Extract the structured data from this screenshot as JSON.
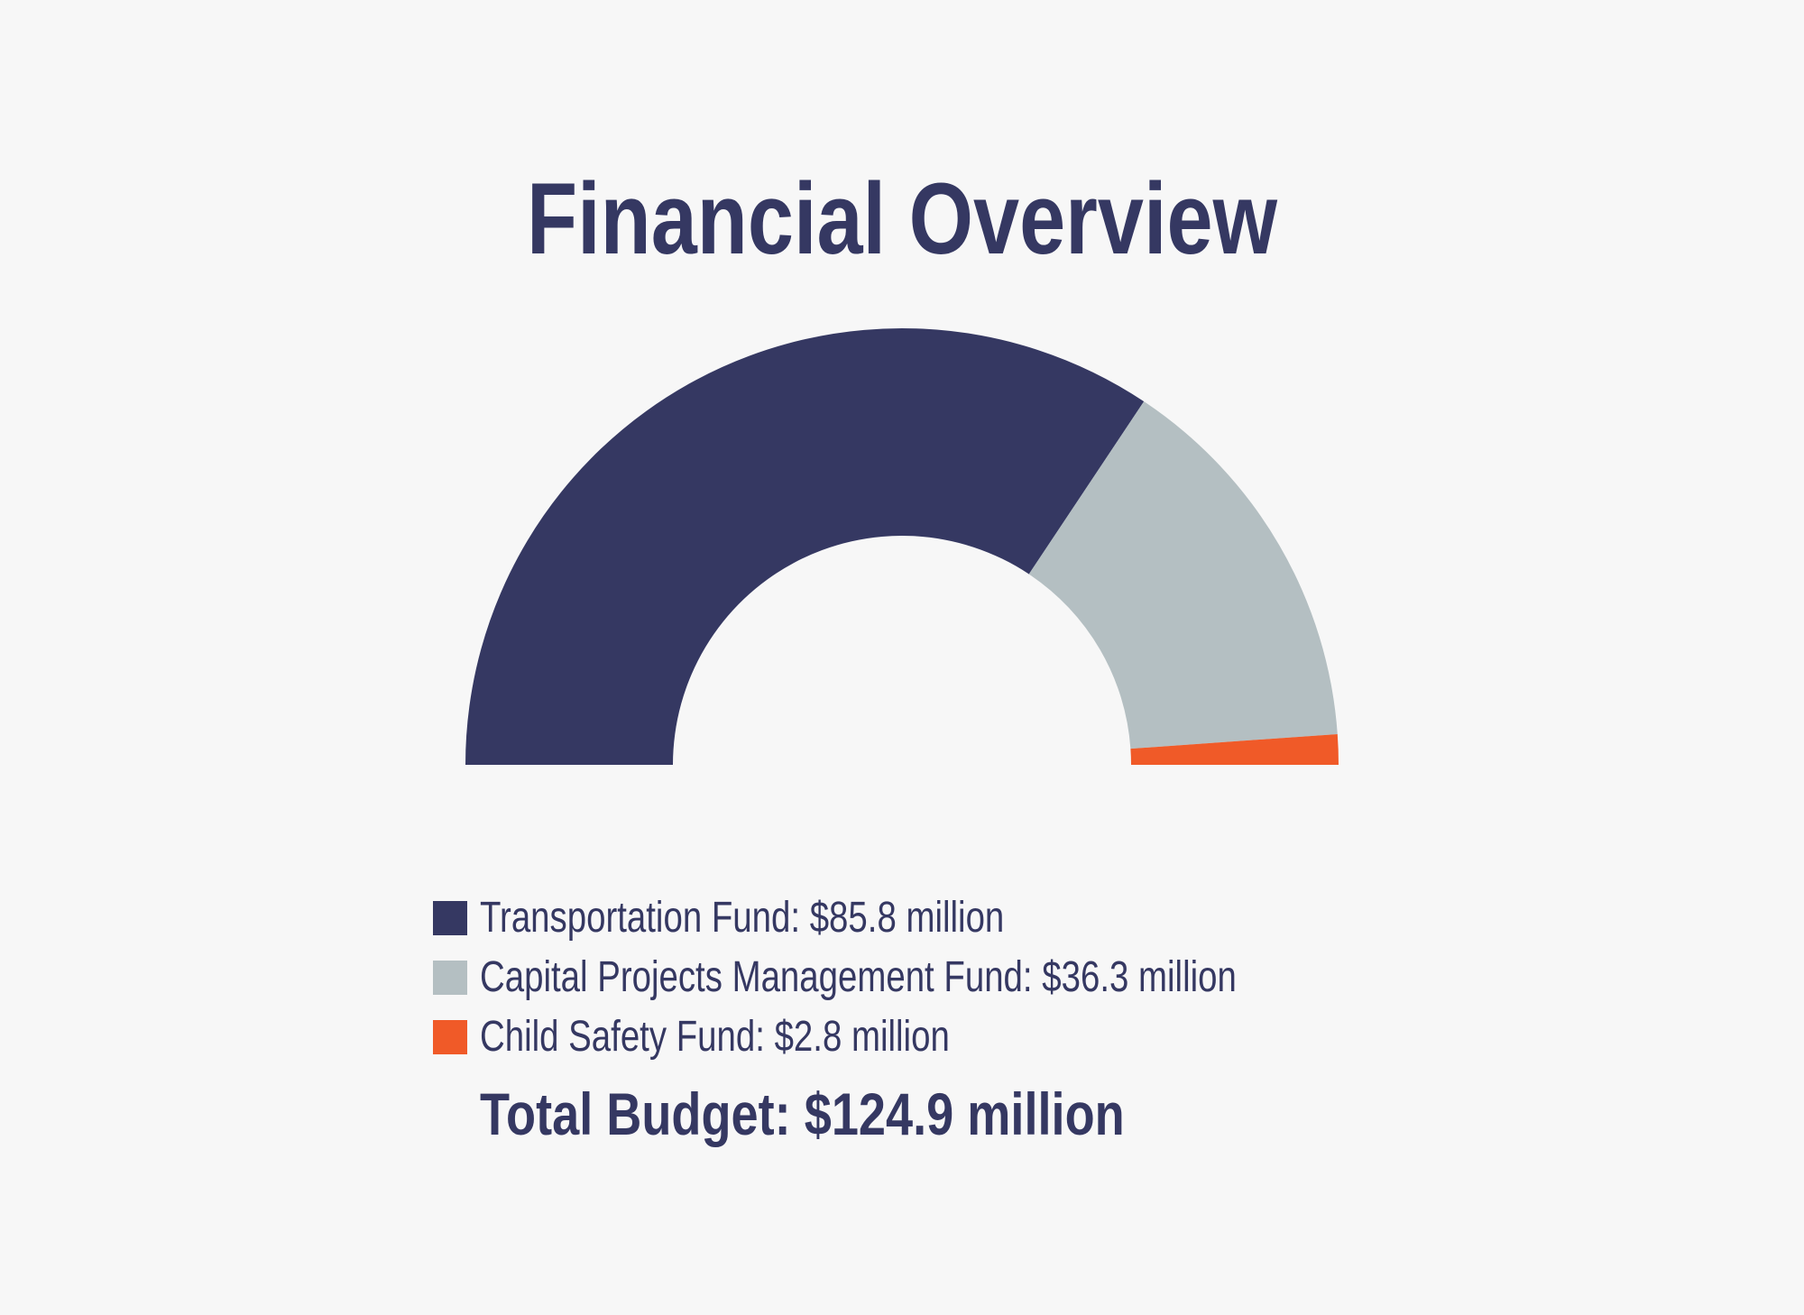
{
  "chart_data": {
    "type": "pie",
    "variant": "half-donut",
    "title": "Financial Overview",
    "units": "million",
    "slices": [
      {
        "label": "Transportation Fund: $85.8 million",
        "value": 85.8,
        "color": "#353862"
      },
      {
        "label": "Capital Projects Management Fund: $36.3 million",
        "value": 36.3,
        "color": "#b4bfc2"
      },
      {
        "label": "Child Safety Fund: $2.8 million",
        "value": 2.8,
        "color": "#f05a28"
      }
    ],
    "total_label": "Total Budget: $124.9 million",
    "total": 124.9,
    "legend_position": "bottom"
  }
}
